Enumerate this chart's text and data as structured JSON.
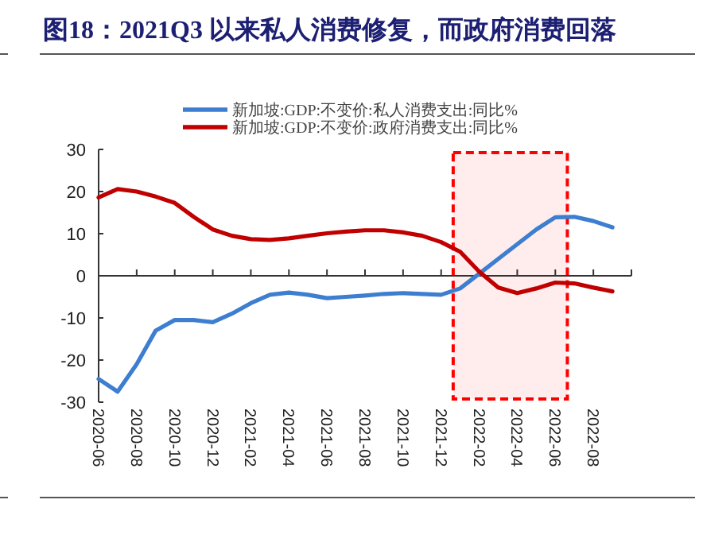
{
  "chart_data": {
    "type": "line",
    "title": "图18：2021Q3 以来私人消费修复，而政府消费回落",
    "x": [
      "2020-06",
      "2020-07",
      "2020-08",
      "2020-09",
      "2020-10",
      "2020-11",
      "2020-12",
      "2021-01",
      "2021-02",
      "2021-03",
      "2021-04",
      "2021-05",
      "2021-06",
      "2021-07",
      "2021-08",
      "2021-09",
      "2021-10",
      "2021-11",
      "2021-12",
      "2022-01",
      "2022-02",
      "2022-03",
      "2022-04",
      "2022-05",
      "2022-06",
      "2022-07",
      "2022-08",
      "2022-09"
    ],
    "series": [
      {
        "name": "新加坡:GDP:不变价:私人消费支出:同比%",
        "color": "#3d7ed0",
        "values": [
          -24.5,
          -27.5,
          -21,
          -13,
          -10.5,
          -10.5,
          -11,
          -9,
          -6.5,
          -4.5,
          -4,
          -4.5,
          -5.3,
          -5,
          -4.7,
          -4.3,
          -4.1,
          -4.3,
          -4.5,
          -3,
          0.5,
          4,
          7.5,
          11,
          13.9,
          14,
          13,
          11.5
        ]
      },
      {
        "name": "新加坡:GDP:不变价:政府消费支出:同比%",
        "color": "#c00000",
        "values": [
          18.6,
          20.6,
          20,
          18.8,
          17.3,
          14,
          11,
          9.5,
          8.7,
          8.5,
          8.9,
          9.5,
          10.1,
          10.5,
          10.8,
          10.8,
          10.3,
          9.5,
          8,
          5.7,
          1,
          -2.8,
          -4.1,
          -3,
          -1.6,
          -1.8,
          -2.8,
          -3.7
        ]
      }
    ],
    "xlim": [
      "2020-06",
      "2022-10"
    ],
    "xticks": [
      "2020-06",
      "2020-08",
      "2020-10",
      "2020-12",
      "2021-02",
      "2021-04",
      "2021-06",
      "2021-08",
      "2021-10",
      "2021-12",
      "2022-02",
      "2022-04",
      "2022-06",
      "2022-08",
      {
        "value": "2022-10",
        "label": null
      }
    ],
    "ylim": [
      -30,
      30
    ],
    "yticks": [
      -30,
      -20,
      -10,
      0,
      10,
      20,
      30
    ],
    "bands": [
      {
        "axis": "x",
        "from": "2021-12-20",
        "to": "2022-06-20",
        "color": "#ff0000"
      }
    ],
    "legend": "top",
    "marker": "none",
    "line_style": "solid"
  }
}
